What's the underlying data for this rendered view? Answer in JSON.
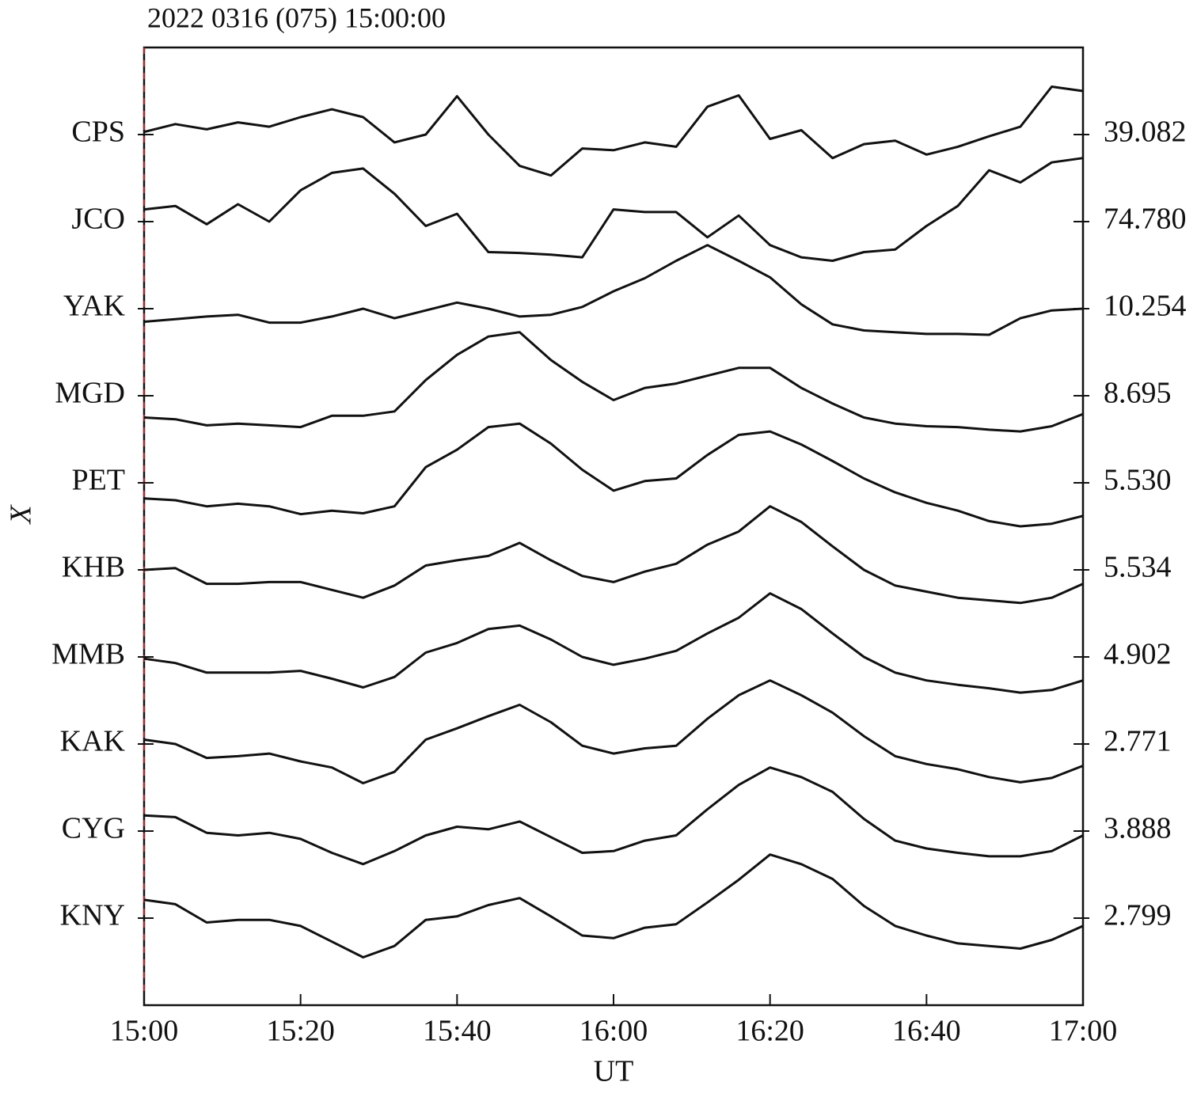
{
  "chart_data": {
    "type": "line",
    "title": "2022 0316 (075) 15:00:00",
    "x_label": "UT",
    "y_label": "X",
    "xlim": [
      0,
      120
    ],
    "xticks": [
      {
        "value": 0,
        "label": "15:00"
      },
      {
        "value": 20,
        "label": "15:20"
      },
      {
        "value": 40,
        "label": "15:40"
      },
      {
        "value": 60,
        "label": "16:00"
      },
      {
        "value": 80,
        "label": "16:20"
      },
      {
        "value": 100,
        "label": "16:40"
      },
      {
        "value": 120,
        "label": "17:00"
      }
    ],
    "ylim": [
      0,
      11
    ],
    "yticks": [
      {
        "value": 10,
        "label": "CPS"
      },
      {
        "value": 9,
        "label": "JCO"
      },
      {
        "value": 8,
        "label": "YAK"
      },
      {
        "value": 7,
        "label": "MGD"
      },
      {
        "value": 6,
        "label": "PET"
      },
      {
        "value": 5,
        "label": "KHB"
      },
      {
        "value": 4,
        "label": "MMB"
      },
      {
        "value": 3,
        "label": "KAK"
      },
      {
        "value": 2,
        "label": "CYG"
      },
      {
        "value": 1,
        "label": "KNY"
      }
    ],
    "y2lim": [
      0,
      11
    ],
    "y2ticks": [
      {
        "value": 10,
        "label": "39.082"
      },
      {
        "value": 9,
        "label": "74.780"
      },
      {
        "value": 8,
        "label": "10.254"
      },
      {
        "value": 7,
        "label": "8.695"
      },
      {
        "value": 6,
        "label": "5.530"
      },
      {
        "value": 5,
        "label": "5.534"
      },
      {
        "value": 4,
        "label": "4.902"
      },
      {
        "value": 3,
        "label": "2.771"
      },
      {
        "value": 2,
        "label": "3.888"
      },
      {
        "value": 1,
        "label": "2.799"
      }
    ],
    "x": [
      0,
      4,
      8,
      12,
      16,
      20,
      24,
      28,
      32,
      36,
      40,
      44,
      48,
      52,
      56,
      60,
      64,
      68,
      72,
      76,
      80,
      84,
      88,
      92,
      96,
      100,
      104,
      108,
      112,
      116,
      120
    ],
    "series": [
      {
        "color": "#111111",
        "values": [
          10.03,
          10.12,
          10.06,
          10.14,
          10.09,
          10.2,
          10.29,
          10.2,
          9.91,
          10.0,
          10.44,
          10.0,
          9.64,
          9.53,
          9.84,
          9.82,
          9.91,
          9.86,
          10.32,
          10.45,
          9.95,
          10.05,
          9.73,
          9.89,
          9.93,
          9.77,
          9.86,
          9.98,
          10.09,
          10.55,
          10.5
        ]
      },
      {
        "color": "#111111",
        "values": [
          9.14,
          9.18,
          8.97,
          9.2,
          9.0,
          9.36,
          9.56,
          9.61,
          9.32,
          8.95,
          9.09,
          8.65,
          8.64,
          8.62,
          8.59,
          9.14,
          9.11,
          9.11,
          8.82,
          9.07,
          8.73,
          8.59,
          8.55,
          8.65,
          8.68,
          8.95,
          9.18,
          9.59,
          9.45,
          9.68,
          9.73
        ]
      },
      {
        "color": "#111111",
        "values": [
          7.85,
          7.88,
          7.91,
          7.93,
          7.84,
          7.84,
          7.91,
          8.0,
          7.89,
          7.98,
          8.07,
          8.0,
          7.91,
          7.93,
          8.02,
          8.2,
          8.35,
          8.55,
          8.73,
          8.55,
          8.36,
          8.05,
          7.82,
          7.75,
          7.73,
          7.71,
          7.71,
          7.7,
          7.89,
          7.98,
          8.0
        ]
      },
      {
        "color": "#111111",
        "values": [
          6.75,
          6.73,
          6.66,
          6.68,
          6.66,
          6.64,
          6.77,
          6.77,
          6.82,
          7.18,
          7.47,
          7.68,
          7.73,
          7.41,
          7.16,
          6.95,
          7.09,
          7.14,
          7.23,
          7.32,
          7.32,
          7.09,
          6.91,
          6.75,
          6.68,
          6.65,
          6.64,
          6.61,
          6.59,
          6.65,
          6.79
        ]
      },
      {
        "color": "#111111",
        "values": [
          5.82,
          5.8,
          5.73,
          5.76,
          5.73,
          5.64,
          5.68,
          5.65,
          5.73,
          6.18,
          6.38,
          6.64,
          6.68,
          6.45,
          6.15,
          5.91,
          6.02,
          6.05,
          6.32,
          6.55,
          6.59,
          6.44,
          6.25,
          6.05,
          5.89,
          5.77,
          5.68,
          5.56,
          5.5,
          5.53,
          5.62
        ]
      },
      {
        "color": "#111111",
        "values": [
          5.0,
          5.02,
          4.84,
          4.84,
          4.86,
          4.86,
          4.77,
          4.68,
          4.82,
          5.05,
          5.11,
          5.16,
          5.31,
          5.11,
          4.93,
          4.86,
          4.98,
          5.07,
          5.29,
          5.44,
          5.73,
          5.55,
          5.27,
          5.0,
          4.82,
          4.75,
          4.68,
          4.65,
          4.62,
          4.68,
          4.84
        ]
      },
      {
        "color": "#111111",
        "values": [
          3.98,
          3.93,
          3.82,
          3.82,
          3.82,
          3.84,
          3.75,
          3.65,
          3.77,
          4.05,
          4.16,
          4.32,
          4.36,
          4.2,
          4.0,
          3.91,
          3.98,
          4.07,
          4.27,
          4.45,
          4.73,
          4.55,
          4.27,
          4.0,
          3.82,
          3.73,
          3.68,
          3.64,
          3.59,
          3.62,
          3.73
        ]
      },
      {
        "color": "#111111",
        "values": [
          3.05,
          3.0,
          2.84,
          2.86,
          2.89,
          2.8,
          2.73,
          2.55,
          2.68,
          3.05,
          3.18,
          3.32,
          3.45,
          3.25,
          2.98,
          2.89,
          2.95,
          2.98,
          3.29,
          3.56,
          3.73,
          3.56,
          3.36,
          3.09,
          2.86,
          2.77,
          2.71,
          2.62,
          2.56,
          2.61,
          2.75
        ]
      },
      {
        "color": "#111111",
        "values": [
          2.18,
          2.16,
          1.98,
          1.95,
          1.98,
          1.91,
          1.75,
          1.62,
          1.77,
          1.95,
          2.05,
          2.02,
          2.11,
          1.93,
          1.75,
          1.77,
          1.89,
          1.95,
          2.25,
          2.53,
          2.73,
          2.62,
          2.45,
          2.14,
          1.89,
          1.8,
          1.75,
          1.71,
          1.71,
          1.77,
          1.95
        ]
      },
      {
        "color": "#111111",
        "values": [
          1.21,
          1.16,
          0.95,
          0.98,
          0.98,
          0.91,
          0.73,
          0.55,
          0.68,
          0.98,
          1.02,
          1.15,
          1.23,
          1.02,
          0.8,
          0.77,
          0.89,
          0.93,
          1.18,
          1.44,
          1.73,
          1.62,
          1.45,
          1.14,
          0.91,
          0.8,
          0.71,
          0.68,
          0.65,
          0.75,
          0.91
        ]
      }
    ]
  }
}
